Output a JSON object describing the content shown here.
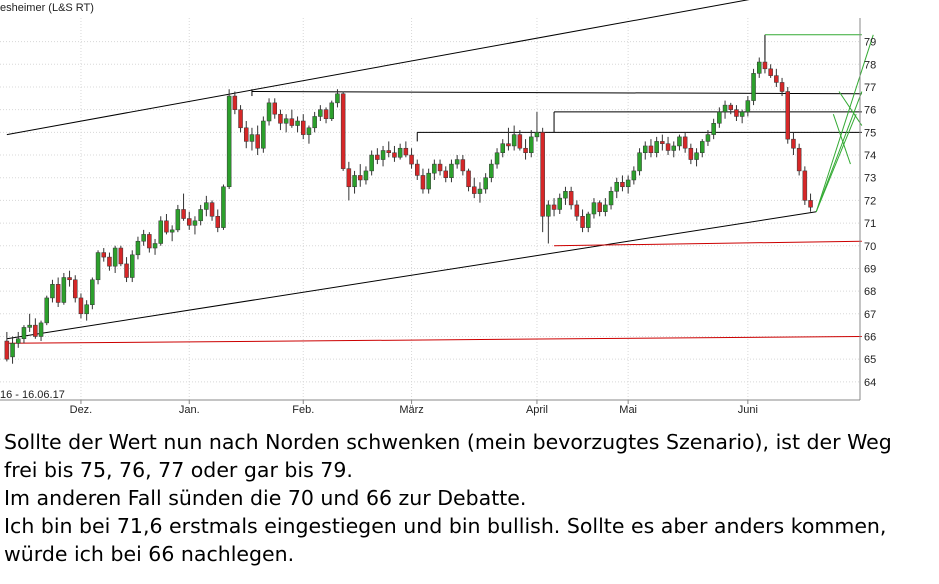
{
  "chart_data": {
    "type": "candlestick",
    "title": "esheimer (L&S RT)",
    "date_range_label": "16 - 16.06.17",
    "x_tick_labels": [
      "Dez.",
      "Jan.",
      "Feb.",
      "März",
      "April",
      "Mai",
      "Juni"
    ],
    "y_tick_labels": [
      "64",
      "65",
      "66",
      "67",
      "68",
      "69",
      "70",
      "71",
      "72",
      "73",
      "74",
      "75",
      "76",
      "77",
      "78",
      "79"
    ],
    "ylim": [
      63.2,
      79.6
    ],
    "grid": true,
    "up_color": "#2ca02c",
    "down_color": "#d62728",
    "candles": [
      [
        65.8,
        66.2,
        64.9,
        65.0
      ],
      [
        65.1,
        66.0,
        64.8,
        65.7
      ],
      [
        65.7,
        66.2,
        65.5,
        65.9
      ],
      [
        65.9,
        66.5,
        65.7,
        66.4
      ],
      [
        66.4,
        67.0,
        66.2,
        66.5
      ],
      [
        66.5,
        66.8,
        65.9,
        66.0
      ],
      [
        66.0,
        66.7,
        65.8,
        66.6
      ],
      [
        66.6,
        67.8,
        66.5,
        67.7
      ],
      [
        67.7,
        68.5,
        67.5,
        68.3
      ],
      [
        68.3,
        68.6,
        67.3,
        67.5
      ],
      [
        67.5,
        68.8,
        67.4,
        68.6
      ],
      [
        68.6,
        68.9,
        68.2,
        68.5
      ],
      [
        68.5,
        68.7,
        67.5,
        67.7
      ],
      [
        67.7,
        67.9,
        66.8,
        67.0
      ],
      [
        67.0,
        67.6,
        66.7,
        67.4
      ],
      [
        67.4,
        68.6,
        67.2,
        68.5
      ],
      [
        68.5,
        69.8,
        68.3,
        69.7
      ],
      [
        69.7,
        69.9,
        69.3,
        69.5
      ],
      [
        69.5,
        69.7,
        68.9,
        69.1
      ],
      [
        69.1,
        70.0,
        68.8,
        69.9
      ],
      [
        69.9,
        70.0,
        69.1,
        69.2
      ],
      [
        69.2,
        69.5,
        68.4,
        68.6
      ],
      [
        68.6,
        69.8,
        68.4,
        69.6
      ],
      [
        69.6,
        70.4,
        69.4,
        70.2
      ],
      [
        70.2,
        70.7,
        70.0,
        70.5
      ],
      [
        70.5,
        70.6,
        69.7,
        69.9
      ],
      [
        69.9,
        70.3,
        69.6,
        70.1
      ],
      [
        70.1,
        71.3,
        70.0,
        71.1
      ],
      [
        71.1,
        71.4,
        70.5,
        70.6
      ],
      [
        70.6,
        70.9,
        70.2,
        70.7
      ],
      [
        70.7,
        71.8,
        70.6,
        71.6
      ],
      [
        71.6,
        72.3,
        71.1,
        71.2
      ],
      [
        71.2,
        71.5,
        70.7,
        70.9
      ],
      [
        70.9,
        71.3,
        70.5,
        71.1
      ],
      [
        71.1,
        71.8,
        70.9,
        71.6
      ],
      [
        71.6,
        72.2,
        71.3,
        71.9
      ],
      [
        71.9,
        72.0,
        71.1,
        71.3
      ],
      [
        71.3,
        71.6,
        70.6,
        70.8
      ],
      [
        70.8,
        72.7,
        70.7,
        72.6
      ],
      [
        72.6,
        76.9,
        72.5,
        76.6
      ],
      [
        76.6,
        76.8,
        75.8,
        76.0
      ],
      [
        76.0,
        76.2,
        75.0,
        75.2
      ],
      [
        75.2,
        75.5,
        74.3,
        74.6
      ],
      [
        74.6,
        75.2,
        74.2,
        74.9
      ],
      [
        74.9,
        75.3,
        74.0,
        74.3
      ],
      [
        74.3,
        75.7,
        74.1,
        75.5
      ],
      [
        75.5,
        76.5,
        75.3,
        76.3
      ],
      [
        76.3,
        76.5,
        75.6,
        75.8
      ],
      [
        75.8,
        76.0,
        75.1,
        75.4
      ],
      [
        75.4,
        75.8,
        75.0,
        75.6
      ],
      [
        75.6,
        76.0,
        75.2,
        75.3
      ],
      [
        75.3,
        75.7,
        75.0,
        75.5
      ],
      [
        75.5,
        75.8,
        74.7,
        74.9
      ],
      [
        74.9,
        75.3,
        74.5,
        75.2
      ],
      [
        75.2,
        75.9,
        75.0,
        75.7
      ],
      [
        75.7,
        76.2,
        75.5,
        76.0
      ],
      [
        76.0,
        76.1,
        75.4,
        75.6
      ],
      [
        75.6,
        76.4,
        75.5,
        76.3
      ],
      [
        76.3,
        76.9,
        76.1,
        76.7
      ],
      [
        76.7,
        76.8,
        73.3,
        73.4
      ],
      [
        73.4,
        73.7,
        72.0,
        72.6
      ],
      [
        72.6,
        73.3,
        72.3,
        73.1
      ],
      [
        73.1,
        73.6,
        72.6,
        72.9
      ],
      [
        72.9,
        73.5,
        72.7,
        73.3
      ],
      [
        73.3,
        74.2,
        73.1,
        74.0
      ],
      [
        74.0,
        74.3,
        73.6,
        73.8
      ],
      [
        73.8,
        74.4,
        73.5,
        74.2
      ],
      [
        74.2,
        74.6,
        73.9,
        74.1
      ],
      [
        74.1,
        74.4,
        73.7,
        73.9
      ],
      [
        73.9,
        74.5,
        73.8,
        74.3
      ],
      [
        74.3,
        74.6,
        73.9,
        74.0
      ],
      [
        74.0,
        74.3,
        73.4,
        73.6
      ],
      [
        73.6,
        73.8,
        72.9,
        73.1
      ],
      [
        73.1,
        73.4,
        72.3,
        72.5
      ],
      [
        72.5,
        73.4,
        72.3,
        73.2
      ],
      [
        73.2,
        73.8,
        72.9,
        73.6
      ],
      [
        73.6,
        73.8,
        73.1,
        73.3
      ],
      [
        73.3,
        73.5,
        72.8,
        73.0
      ],
      [
        73.0,
        73.8,
        72.8,
        73.6
      ],
      [
        73.6,
        74.0,
        73.4,
        73.8
      ],
      [
        73.8,
        74.0,
        73.1,
        73.3
      ],
      [
        73.3,
        73.4,
        72.4,
        72.6
      ],
      [
        72.6,
        73.0,
        72.1,
        72.3
      ],
      [
        72.3,
        72.8,
        71.9,
        72.5
      ],
      [
        72.5,
        73.2,
        72.3,
        73.0
      ],
      [
        73.0,
        73.8,
        72.8,
        73.6
      ],
      [
        73.6,
        74.3,
        73.4,
        74.1
      ],
      [
        74.1,
        74.7,
        73.9,
        74.5
      ],
      [
        74.5,
        75.2,
        74.2,
        74.4
      ],
      [
        74.4,
        75.3,
        74.2,
        74.9
      ],
      [
        74.9,
        75.1,
        74.2,
        74.3
      ],
      [
        74.3,
        74.7,
        73.8,
        74.1
      ],
      [
        74.1,
        75.1,
        73.9,
        74.8
      ],
      [
        74.8,
        75.9,
        74.6,
        75.0
      ],
      [
        75.0,
        75.2,
        70.6,
        71.3
      ],
      [
        71.3,
        72.0,
        70.1,
        71.8
      ],
      [
        71.8,
        72.1,
        71.3,
        71.6
      ],
      [
        71.6,
        72.3,
        71.4,
        72.1
      ],
      [
        72.1,
        72.6,
        71.8,
        72.4
      ],
      [
        72.4,
        72.6,
        71.6,
        71.8
      ],
      [
        71.8,
        72.0,
        71.1,
        71.3
      ],
      [
        71.3,
        71.6,
        70.6,
        70.8
      ],
      [
        70.8,
        71.5,
        70.6,
        71.4
      ],
      [
        71.4,
        72.1,
        71.2,
        71.9
      ],
      [
        71.9,
        72.0,
        71.3,
        71.5
      ],
      [
        71.5,
        72.1,
        71.3,
        71.8
      ],
      [
        71.8,
        72.6,
        71.6,
        72.4
      ],
      [
        72.4,
        73.0,
        72.1,
        72.8
      ],
      [
        72.8,
        73.1,
        72.4,
        72.6
      ],
      [
        72.6,
        73.1,
        72.3,
        72.9
      ],
      [
        72.9,
        73.5,
        72.7,
        73.3
      ],
      [
        73.3,
        74.3,
        73.1,
        74.1
      ],
      [
        74.1,
        74.6,
        73.8,
        74.4
      ],
      [
        74.4,
        74.7,
        73.9,
        74.1
      ],
      [
        74.1,
        74.8,
        73.9,
        74.6
      ],
      [
        74.6,
        74.9,
        74.2,
        74.5
      ],
      [
        74.5,
        74.8,
        74.0,
        74.2
      ],
      [
        74.2,
        74.6,
        73.9,
        74.4
      ],
      [
        74.4,
        74.9,
        74.2,
        74.8
      ],
      [
        74.8,
        75.0,
        74.1,
        74.3
      ],
      [
        74.3,
        74.5,
        73.6,
        73.8
      ],
      [
        73.8,
        74.3,
        73.5,
        74.1
      ],
      [
        74.1,
        74.7,
        73.9,
        74.6
      ],
      [
        74.6,
        75.1,
        74.4,
        74.9
      ],
      [
        74.9,
        75.6,
        74.7,
        75.4
      ],
      [
        75.4,
        76.1,
        75.2,
        75.9
      ],
      [
        75.9,
        76.4,
        75.6,
        76.2
      ],
      [
        76.2,
        76.3,
        75.8,
        76.0
      ],
      [
        76.0,
        76.2,
        75.5,
        75.7
      ],
      [
        75.7,
        76.0,
        75.4,
        75.9
      ],
      [
        75.9,
        76.6,
        75.7,
        76.4
      ],
      [
        76.4,
        77.8,
        76.2,
        77.6
      ],
      [
        77.6,
        78.3,
        77.4,
        78.1
      ],
      [
        78.1,
        78.2,
        77.6,
        77.8
      ],
      [
        77.8,
        78.0,
        77.4,
        77.5
      ],
      [
        77.5,
        77.8,
        77.0,
        77.2
      ],
      [
        77.2,
        77.4,
        76.6,
        76.8
      ],
      [
        76.8,
        77.0,
        74.5,
        74.7
      ],
      [
        74.7,
        75.0,
        74.0,
        74.3
      ],
      [
        74.3,
        74.5,
        73.1,
        73.3
      ],
      [
        73.3,
        73.5,
        71.8,
        72.0
      ],
      [
        72.0,
        72.3,
        71.5,
        71.7
      ]
    ],
    "trend_lines": [
      {
        "name": "channel-upper",
        "x": [
          0,
          140
        ],
        "y": [
          74.9,
          81.3
        ],
        "color": "#000000"
      },
      {
        "name": "channel-lower",
        "x": [
          0,
          142
        ],
        "y": [
          65.9,
          71.5
        ],
        "color": "#000000"
      },
      {
        "name": "support-70",
        "x": [
          96,
          150
        ],
        "y": [
          70.0,
          70.2
        ],
        "color": "#cc0000"
      },
      {
        "name": "support-66",
        "x": [
          0,
          150
        ],
        "y": [
          65.7,
          66.0
        ],
        "color": "#cc0000"
      },
      {
        "name": "resistance-77",
        "x": [
          43,
          150
        ],
        "y": [
          76.8,
          76.7
        ],
        "color": "#000000"
      },
      {
        "name": "resistance-76",
        "x": [
          96,
          150
        ],
        "y": [
          75.9,
          75.9
        ],
        "color": "#000000"
      },
      {
        "name": "resistance-75",
        "x": [
          72,
          150
        ],
        "y": [
          75.0,
          75.0
        ],
        "color": "#000000"
      }
    ],
    "green_projection": [
      {
        "x": [
          133,
          150
        ],
        "y": [
          79.3,
          79.3
        ]
      },
      {
        "x": [
          142,
          152
        ],
        "y": [
          71.5,
          79.3
        ]
      },
      {
        "x": [
          142,
          150
        ],
        "y": [
          71.5,
          76.8
        ]
      },
      {
        "x": [
          142,
          149
        ],
        "y": [
          71.5,
          75.8
        ]
      },
      {
        "x": [
          145,
          148
        ],
        "y": [
          75.8,
          73.6
        ]
      },
      {
        "x": [
          146,
          150
        ],
        "y": [
          76.8,
          75.3
        ]
      }
    ],
    "vertical_markers": [
      {
        "x": 43,
        "y": [
          76.6,
          76.9
        ]
      },
      {
        "x": 72,
        "y": [
          74.6,
          75.0
        ]
      },
      {
        "x": 96,
        "y": [
          75.0,
          75.9
        ]
      },
      {
        "x": 133,
        "y": [
          78.1,
          79.3
        ]
      }
    ],
    "x_tick_positions": [
      13,
      32,
      52,
      71,
      93,
      109,
      130
    ]
  },
  "commentary": {
    "lines": [
      "Sollte der Wert nun nach Norden schwenken (mein bevorzugtes Szenario), ist der Weg",
      "frei bis 75, 76, 77 oder gar bis 79.",
      "Im anderen Fall sünden die 70 und 66 zur Debatte.",
      "Ich bin bei 71,6 erstmals eingestiegen und bin bullish. Sollte es aber anders kommen,",
      "würde ich bei 66 nachlegen."
    ]
  }
}
